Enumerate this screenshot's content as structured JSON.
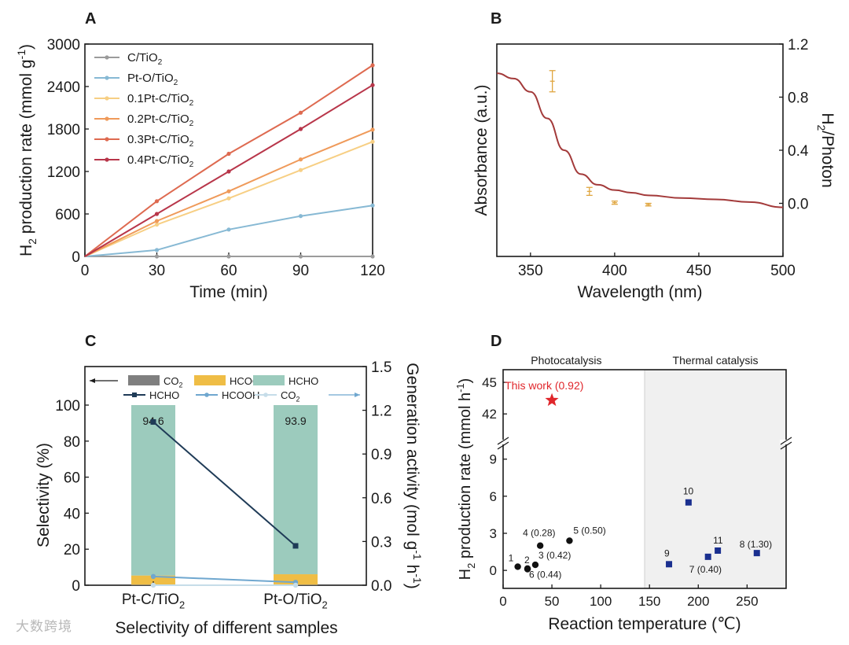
{
  "watermark": "大数跨境",
  "chart_data": [
    {
      "panel": "A",
      "type": "line",
      "xlabel": "Time (min)",
      "ylabel": "H2 production rate (mmol g-1)",
      "xlim": [
        0,
        120
      ],
      "ylim": [
        0,
        3000
      ],
      "xticks": [
        0,
        30,
        60,
        90,
        120
      ],
      "yticks": [
        0,
        600,
        1200,
        1800,
        2400,
        3000
      ],
      "x": [
        0,
        30,
        60,
        90,
        120
      ],
      "legend_position": "top-left",
      "series": [
        {
          "name": "C/TiO2",
          "label": "C/TiO",
          "sub": "2",
          "color": "#9b9b9b",
          "values": [
            0,
            0,
            0,
            0,
            0
          ]
        },
        {
          "name": "Pt-O/TiO2",
          "label": "Pt-O/TiO",
          "sub": "2",
          "color": "#87b9d4",
          "values": [
            0,
            90,
            380,
            570,
            720
          ]
        },
        {
          "name": "0.1Pt-C/TiO2",
          "label": "0.1Pt-C/TiO",
          "sub": "2",
          "color": "#f7cf84",
          "values": [
            0,
            450,
            820,
            1220,
            1620
          ]
        },
        {
          "name": "0.2Pt-C/TiO2",
          "label": "0.2Pt-C/TiO",
          "sub": "2",
          "color": "#ef9a5a",
          "values": [
            0,
            500,
            920,
            1370,
            1790
          ]
        },
        {
          "name": "0.3Pt-C/TiO2",
          "label": "0.3Pt-C/TiO",
          "sub": "2",
          "color": "#de6a50",
          "values": [
            0,
            780,
            1450,
            2030,
            2700
          ]
        },
        {
          "name": "0.4Pt-C/TiO2",
          "label": "0.4Pt-C/TiO",
          "sub": "2",
          "color": "#b8364a",
          "values": [
            0,
            600,
            1200,
            1800,
            2420
          ]
        }
      ]
    },
    {
      "panel": "B",
      "type": "line",
      "xlabel": "Wavelength (nm)",
      "ylabel": "Absorbance (a.u.)",
      "ylabel_right": "H2/Photon",
      "xlim": [
        330,
        500
      ],
      "xticks": [
        350,
        400,
        450,
        500
      ],
      "y2lim": [
        -0.4,
        1.2
      ],
      "y2ticks": [
        0.0,
        0.4,
        0.8,
        1.2
      ],
      "series": [
        {
          "name": "Absorbance",
          "color": "#a33a3a",
          "x": [
            330,
            340,
            350,
            360,
            370,
            380,
            390,
            400,
            410,
            420,
            440,
            460,
            480,
            500
          ],
          "values": [
            0.98,
            0.94,
            0.84,
            0.64,
            0.4,
            0.22,
            0.14,
            0.1,
            0.08,
            0.06,
            0.04,
            0.03,
            0.01,
            -0.03
          ]
        }
      ],
      "points": [
        {
          "x": 363,
          "y": 0.92,
          "err": 0.08
        },
        {
          "x": 385,
          "y": 0.09,
          "err": 0.03
        },
        {
          "x": 400,
          "y": 0.005,
          "err": 0.012
        },
        {
          "x": 420,
          "y": -0.01,
          "err": 0.01
        }
      ],
      "points_color": "#e0a640"
    },
    {
      "panel": "C",
      "type": "bar",
      "title": "Selectivity of different samples",
      "ylabel": "Selectivity (%)",
      "ylabel_right": "Generation activity (mol g-1 h-1)",
      "categories": [
        "Pt-C/TiO2",
        "Pt-O/TiO2"
      ],
      "category_labels": [
        {
          "main": "Pt-C/TiO",
          "sub": "2"
        },
        {
          "main": "Pt-O/TiO",
          "sub": "2"
        }
      ],
      "ylim": [
        0,
        100
      ],
      "yticks": [
        0,
        20,
        40,
        60,
        80,
        100
      ],
      "y2lim": [
        0,
        1.5
      ],
      "y2ticks": [
        0.0,
        0.3,
        0.6,
        0.9,
        1.2,
        1.5
      ],
      "stacked_series": [
        {
          "name": "CO2",
          "color": "#7f7f7f",
          "values": [
            0.3,
            0.3
          ]
        },
        {
          "name": "HCOOH",
          "color": "#efbd45",
          "values": [
            5.1,
            5.8
          ]
        },
        {
          "name": "HCHO",
          "color": "#9ccbbd",
          "values": [
            94.6,
            93.9
          ]
        }
      ],
      "bar_labels": [
        "94.6",
        "93.9"
      ],
      "line_series": [
        {
          "name": "HCHO",
          "color": "#1f3b57",
          "values": [
            1.12,
            0.27
          ]
        },
        {
          "name": "HCOOH",
          "color": "#6fa7cf",
          "values": [
            0.06,
            0.02
          ]
        },
        {
          "name": "CO2",
          "color": "#c6dde9",
          "values": [
            0.0,
            0.0
          ]
        }
      ],
      "legend_bars": [
        {
          "main": "CO",
          "sub": "2",
          "color": "#7f7f7f"
        },
        {
          "main": "HCOOH",
          "sub": "",
          "color": "#efbd45"
        },
        {
          "main": "HCHO",
          "sub": "",
          "color": "#9ccbbd"
        }
      ],
      "legend_lines": [
        {
          "main": "HCHO",
          "sub": "",
          "color": "#1f3b57"
        },
        {
          "main": "HCOOH",
          "sub": "",
          "color": "#6fa7cf"
        },
        {
          "main": "CO",
          "sub": "2",
          "color": "#c6dde9"
        }
      ]
    },
    {
      "panel": "D",
      "type": "scatter",
      "xlabel": "Reaction temperature (℃)",
      "ylabel": "H2 production rate (mmol h-1)",
      "xlim": [
        0,
        290
      ],
      "xticks": [
        0,
        50,
        100,
        150,
        200,
        250
      ],
      "ylim_lower": [
        -0.5,
        10
      ],
      "yticks_lower": [
        0,
        3,
        6,
        9
      ],
      "ylim_upper": [
        40,
        46.5
      ],
      "yticks_upper": [
        42,
        45
      ],
      "region_labels": [
        "Photocatalysis",
        "Thermal catalysis"
      ],
      "thermal_from": 145,
      "this_work": {
        "label": "This work (0.92)",
        "x": 50,
        "y": 43.3,
        "color": "#e0262b"
      },
      "photo_points": [
        {
          "label": "1",
          "x": 15,
          "y": 0.3
        },
        {
          "label": "2",
          "x": 25,
          "y": 0.15
        },
        {
          "label": "3 (0.42)",
          "x": 33,
          "y": 0.45
        },
        {
          "label": "4 (0.28)",
          "x": 38,
          "y": 2.0
        },
        {
          "label": "5 (0.50)",
          "x": 68,
          "y": 2.4
        },
        {
          "label": "6 (0.44)",
          "x": 25,
          "y": 0.1
        }
      ],
      "thermal_points": [
        {
          "label": "7 (0.40)",
          "x": 210,
          "y": 1.1
        },
        {
          "label": "8 (1.30)",
          "x": 260,
          "y": 1.4
        },
        {
          "label": "9",
          "x": 170,
          "y": 0.5
        },
        {
          "label": "10",
          "x": 190,
          "y": 5.5
        },
        {
          "label": "11",
          "x": 220,
          "y": 1.6
        }
      ],
      "photo_color": "#111111",
      "thermal_color": "#1a2f8f"
    }
  ],
  "panel_letters": [
    "A",
    "B",
    "C",
    "D"
  ]
}
